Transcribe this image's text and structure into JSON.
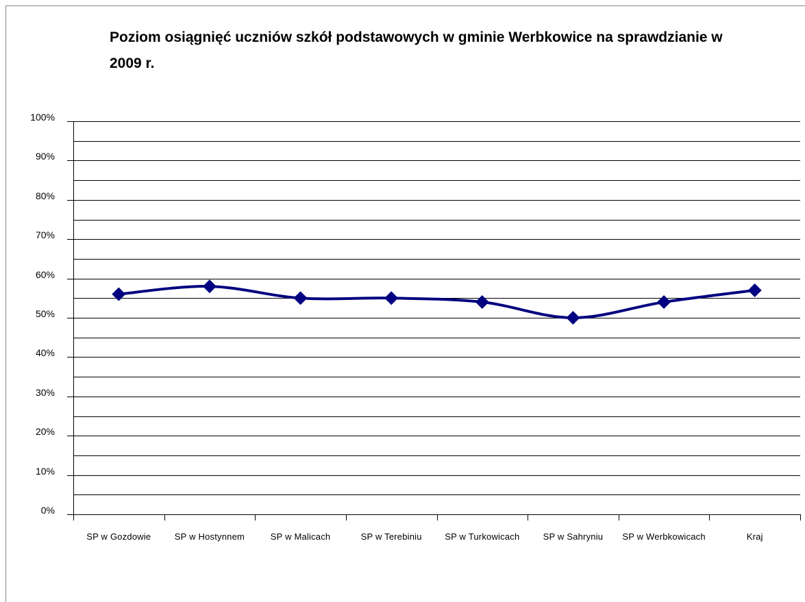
{
  "chart_data": {
    "type": "line",
    "title": "Poziom osiągnięć uczniów szkół podstawowych w gminie Werbkowice na sprawdzianie w 2009 r.",
    "categories": [
      "SP w Gozdowie",
      "SP w Hostynnem",
      "SP w Malicach",
      "SP w Terebiniu",
      "SP w Turkowicach",
      "SP w Sahryniu",
      "SP w Werbkowicach",
      "Kraj"
    ],
    "series": [
      {
        "color": "#000080",
        "values": [
          56,
          58,
          55,
          55,
          54,
          50,
          54,
          57
        ]
      }
    ],
    "ylim": [
      0,
      100
    ],
    "yticks": [
      {
        "value": 0,
        "label": "0%"
      },
      {
        "value": 10,
        "label": "10%"
      },
      {
        "value": 20,
        "label": "20%"
      },
      {
        "value": 30,
        "label": "30%"
      },
      {
        "value": 40,
        "label": "40%"
      },
      {
        "value": 50,
        "label": "50%"
      },
      {
        "value": 60,
        "label": "60%"
      },
      {
        "value": 70,
        "label": "70%"
      },
      {
        "value": 80,
        "label": "80%"
      },
      {
        "value": 90,
        "label": "90%"
      },
      {
        "value": 100,
        "label": "100%"
      }
    ],
    "minor_yticks": [
      5,
      15,
      25,
      35,
      45,
      55,
      65,
      75,
      85,
      95
    ],
    "grid": true,
    "smooth": true,
    "marker": "diamond"
  }
}
